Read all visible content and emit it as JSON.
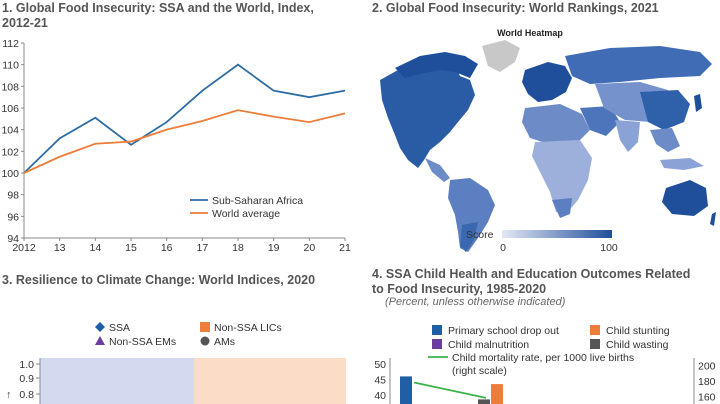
{
  "panel1": {
    "title_line1": "1. Global Food Insecurity: SSA and the World, Index,",
    "title_line2": "2012-21"
  },
  "panel2": {
    "title": "2. Global Food Insecurity: World Rankings, 2021",
    "map_title": "World Heatmap",
    "score_label": "Score",
    "score_min": "0",
    "score_max": "100"
  },
  "panel3": {
    "title": "3. Resilience to Climate Change: World Indices, 2020"
  },
  "panel4": {
    "title_line1": "4. SSA Child Health and Education Outcomes Related",
    "title_line2": "to Food Insecurity, 1985-2020",
    "subtitle": "(Percent, unless otherwise indicated)"
  },
  "colors": {
    "ssa_line": "#2e6da4",
    "world_line": "#ee7d3a",
    "map_low": "#dfe4f3",
    "map_high": "#1f4f9a",
    "ocean": "#ffffff"
  },
  "chart_data": [
    {
      "type": "line",
      "title": "1. Global Food Insecurity: SSA and the World, Index, 2012-21",
      "x": [
        "2012",
        "13",
        "14",
        "15",
        "16",
        "17",
        "18",
        "19",
        "20",
        "21"
      ],
      "ylim": [
        94,
        112
      ],
      "yticks": [
        "94",
        "96",
        "98",
        "100",
        "102",
        "104",
        "106",
        "108",
        "110",
        "112"
      ],
      "series": [
        {
          "name": "Sub-Saharan Africa",
          "values": [
            100.0,
            103.2,
            105.1,
            102.6,
            104.7,
            107.6,
            110.0,
            107.6,
            107.0,
            107.6
          ]
        },
        {
          "name": "World average",
          "values": [
            100.0,
            101.5,
            102.7,
            102.9,
            104.0,
            104.8,
            105.8,
            105.2,
            104.7,
            105.5
          ]
        }
      ],
      "legend_position": "bottom-right"
    },
    {
      "type": "heatmap",
      "title": "World Heatmap",
      "colorbar": {
        "label": "Score",
        "min": 0,
        "max": 100
      }
    },
    {
      "type": "scatter",
      "title": "3. Resilience to Climate Change: World Indices, 2020",
      "legend": [
        {
          "name": "SSA",
          "marker": "diamond",
          "color": "#1f5fa6"
        },
        {
          "name": "Non-SSA LICs",
          "marker": "square",
          "color": "#ee7d3a"
        },
        {
          "name": "Non-SSA EMs",
          "marker": "triangle",
          "color": "#6a3ea1"
        },
        {
          "name": "AMs",
          "marker": "circle",
          "color": "#555555"
        }
      ],
      "yticks": [
        "1.0",
        "0.9",
        "0.8"
      ],
      "bands": [
        {
          "color": "#d3daf0"
        },
        {
          "color": "#fbdcc6"
        }
      ]
    },
    {
      "type": "bar",
      "title": "4. SSA Child Health and Education Outcomes Related to Food Insecurity, 1985-2020",
      "legend": [
        {
          "name": "Primary school drop out",
          "color": "#1f5fa6",
          "marker": "square"
        },
        {
          "name": "Child stunting",
          "color": "#ee7d3a",
          "marker": "square"
        },
        {
          "name": "Child malnutrition",
          "color": "#6a3ea1",
          "marker": "square"
        },
        {
          "name": "Child wasting",
          "color": "#555555",
          "marker": "square"
        },
        {
          "name": "Child mortality rate, per 1000 live births",
          "name_line2": "(right scale)",
          "color": "#3cb44b",
          "marker": "line"
        }
      ],
      "yticks_left": [
        "50",
        "45",
        "40"
      ],
      "yticks_right": [
        "200",
        "180",
        "160"
      ],
      "ylim_left": [
        37,
        52
      ],
      "ylim_right": [
        150,
        210
      ],
      "series": [
        {
          "name": "Primary school drop out",
          "values": [
            46
          ]
        },
        {
          "name": "Child stunting",
          "values": [
            43.5
          ]
        },
        {
          "name": "Child wasting",
          "values": [
            38.5
          ]
        }
      ],
      "mortality_line": [
        178,
        158
      ]
    }
  ]
}
